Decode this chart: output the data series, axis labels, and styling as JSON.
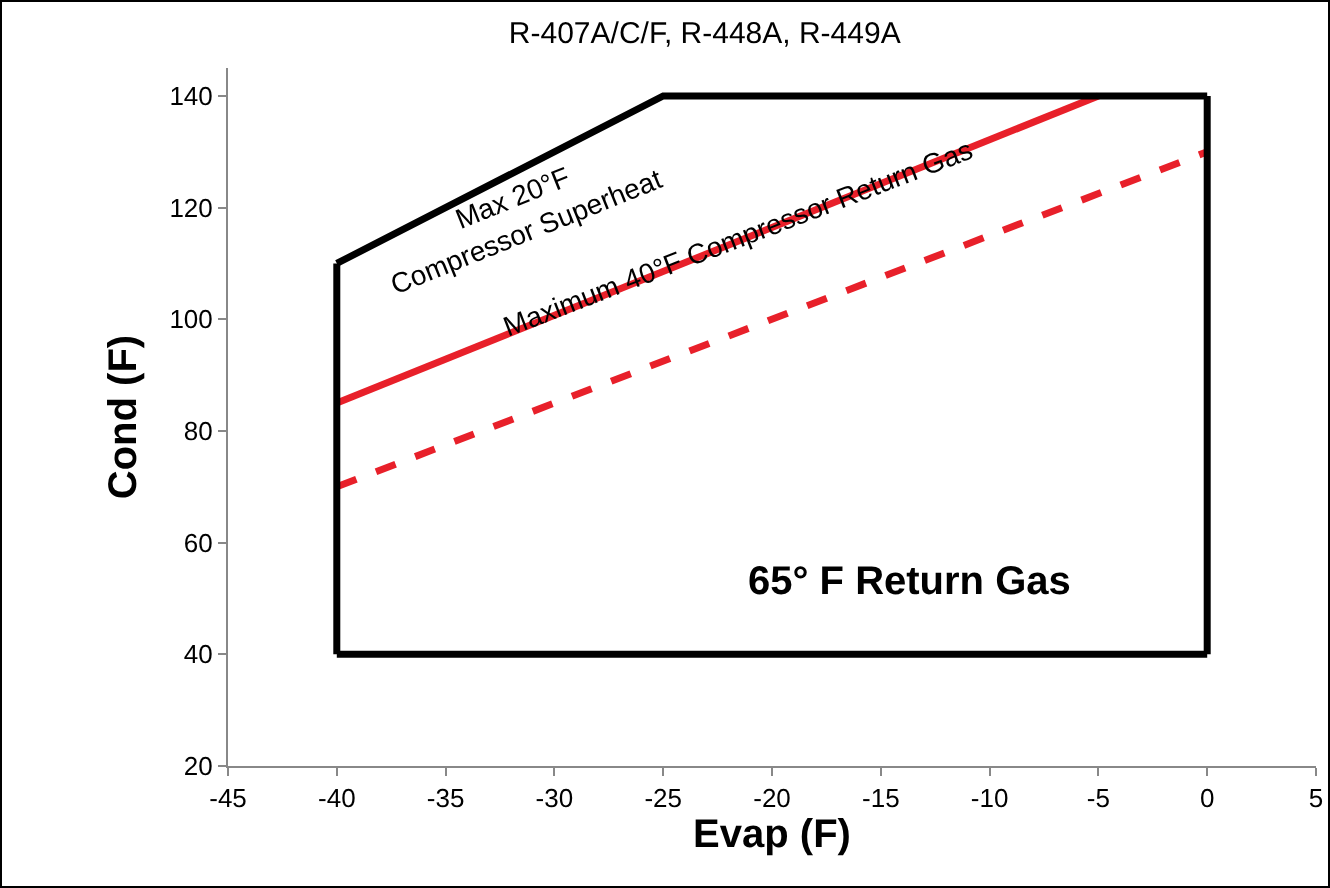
{
  "chart_data": {
    "type": "line",
    "title": "R-407A/C/F, R-448A, R-449A",
    "xlabel": "Evap (F)",
    "ylabel": "Cond (F)",
    "xlim": [
      -45,
      5
    ],
    "xticks": [
      -45,
      -40,
      -35,
      -30,
      -25,
      -20,
      -15,
      -10,
      -5,
      0,
      5
    ],
    "ylim": [
      20,
      145
    ],
    "yticks": [
      20,
      40,
      60,
      80,
      100,
      120,
      140
    ],
    "grid": false,
    "marker": "none",
    "series": [
      {
        "color": "#e8202a",
        "x": [
          -40,
          -5
        ],
        "values": [
          85,
          140
        ],
        "line_style": "solid"
      },
      {
        "color": "#e8202a",
        "x": [
          -40,
          0
        ],
        "values": [
          70,
          130
        ],
        "line_style": "dashed"
      },
      {
        "color": "#000000",
        "x": [
          -40,
          -25,
          0
        ],
        "values": [
          110,
          140,
          140
        ],
        "line_style": "solid"
      },
      {
        "color": "#000000",
        "x": [
          -40,
          0
        ],
        "values": [
          40,
          40
        ],
        "line_style": "solid"
      },
      {
        "color": "#000000",
        "x": [
          -40,
          -40
        ],
        "values": [
          40,
          110
        ],
        "line_style": "solid"
      },
      {
        "color": "#000000",
        "x": [
          0,
          0
        ],
        "values": [
          40,
          140
        ],
        "line_style": "solid"
      }
    ],
    "annotations": [
      "Max 20°F\nCompressor Superheat",
      {
        "text": "Maximum 40°F Compressor Return Gas",
        "x": -21.6,
        "y": 114.5
      },
      "65° F Return Gas"
    ]
  }
}
